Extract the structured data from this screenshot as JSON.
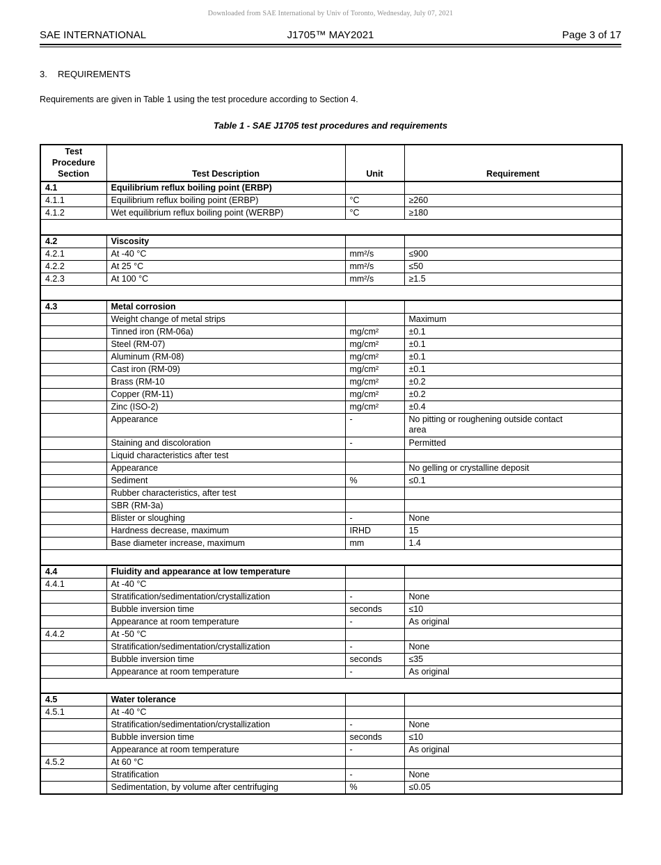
{
  "colors": {
    "notice_gray": "#8c8c8c",
    "text": "#000000",
    "background": "#ffffff"
  },
  "notice": "Downloaded from SAE International by Univ of Toronto, Wednesday, July 07, 2021",
  "header": {
    "left": "SAE INTERNATIONAL",
    "center": "J1705™ MAY2021",
    "right": "Page 3 of 17"
  },
  "section": {
    "number": "3.",
    "title": "REQUIREMENTS"
  },
  "intro": "Requirements are given in Table 1 using the test procedure according to Section 4.",
  "table": {
    "caption": "Table 1 - SAE J1705 test procedures and requirements",
    "columns": [
      "Test\nProcedure\nSection",
      "Test Description",
      "Unit",
      "Requirement"
    ],
    "rows": [
      {
        "section": "4.1",
        "description": "Equilibrium reflux boiling point (ERBP)",
        "unit": "",
        "requirement": "",
        "bold": true,
        "sectionStart": true
      },
      {
        "section": "4.1.1",
        "description": "Equilibrium reflux boiling point (ERBP)",
        "unit": "°C",
        "requirement": "≥260"
      },
      {
        "section": "4.1.2",
        "description": "Wet equilibrium reflux boiling point (WERBP)",
        "unit": "°C",
        "requirement": "≥180"
      },
      {
        "type": "spacer"
      },
      {
        "section": "4.2",
        "description": "Viscosity",
        "unit": "",
        "requirement": "",
        "bold": true,
        "sectionStart": true
      },
      {
        "section": "4.2.1",
        "description": "At -40 °C",
        "unit": "mm²/s",
        "requirement": "≤900"
      },
      {
        "section": "4.2.2",
        "description": "At 25 °C",
        "unit": "mm²/s",
        "requirement": "≤50"
      },
      {
        "section": "4.2.3",
        "description": "At 100 °C",
        "unit": "mm²/s",
        "requirement": "≥1.5"
      },
      {
        "type": "spacer"
      },
      {
        "section": "4.3",
        "description": "Metal corrosion",
        "unit": "",
        "requirement": "",
        "bold": true,
        "sectionStart": true
      },
      {
        "section": "",
        "description": "Weight change of metal strips",
        "unit": "",
        "requirement": "Maximum"
      },
      {
        "section": "",
        "description": "Tinned iron (RM-06a)",
        "indent": 1,
        "unit": "mg/cm²",
        "requirement": "±0.1"
      },
      {
        "section": "",
        "description": "Steel (RM-07)",
        "indent": 1,
        "unit": "mg/cm²",
        "requirement": "±0.1"
      },
      {
        "section": "",
        "description": "Aluminum (RM-08)",
        "indent": 1,
        "unit": "mg/cm²",
        "requirement": "±0.1"
      },
      {
        "section": "",
        "description": "Cast iron (RM-09)",
        "indent": 1,
        "unit": "mg/cm²",
        "requirement": "±0.1"
      },
      {
        "section": "",
        "description": "Brass (RM-10",
        "indent": 1,
        "unit": "mg/cm²",
        "requirement": "±0.2"
      },
      {
        "section": "",
        "description": "Copper (RM-11)",
        "indent": 1,
        "unit": "mg/cm²",
        "requirement": "±0.2"
      },
      {
        "section": "",
        "description": "Zinc (ISO-2)",
        "indent": 1,
        "unit": "mg/cm²",
        "requirement": "±0.4"
      },
      {
        "section": "",
        "description": "Appearance",
        "indent": 1,
        "unit": "-",
        "requirement": "No pitting or roughening outside contact\narea",
        "tall": true
      },
      {
        "section": "",
        "description": "Staining and discoloration",
        "indent": 1,
        "unit": "-",
        "requirement": "Permitted"
      },
      {
        "section": "",
        "description": "Liquid characteristics after test",
        "unit": "",
        "requirement": ""
      },
      {
        "section": "",
        "description": "Appearance",
        "indent": 1,
        "unit": "",
        "requirement": "No gelling or crystalline deposit"
      },
      {
        "section": "",
        "description": "Sediment",
        "indent": 1,
        "unit": "%",
        "requirement": "≤0.1"
      },
      {
        "section": "",
        "description": "Rubber characteristics, after test",
        "unit": "",
        "requirement": ""
      },
      {
        "section": "",
        "description": "SBR (RM-3a)",
        "indent": 1,
        "unit": "",
        "requirement": ""
      },
      {
        "section": "",
        "description": "Blister or sloughing",
        "indent": 2,
        "unit": "-",
        "requirement": "None"
      },
      {
        "section": "",
        "description": "Hardness decrease, maximum",
        "indent": 2,
        "unit": "IRHD",
        "requirement": "15"
      },
      {
        "section": "",
        "description": "Base diameter increase, maximum",
        "indent": 2,
        "unit": "mm",
        "requirement": "1.4"
      },
      {
        "type": "spacer"
      },
      {
        "section": "4.4",
        "description": "Fluidity and appearance at low temperature",
        "unit": "",
        "requirement": "",
        "bold": true,
        "sectionStart": true
      },
      {
        "section": "4.4.1",
        "description": "At -40 °C",
        "unit": "",
        "requirement": ""
      },
      {
        "section": "",
        "description": "Stratification/sedimentation/crystallization",
        "indent": 1,
        "unit": "-",
        "requirement": "None"
      },
      {
        "section": "",
        "description": "Bubble inversion time",
        "indent": 1,
        "unit": "seconds",
        "requirement": "≤10"
      },
      {
        "section": "",
        "description": "Appearance at room temperature",
        "indent": 1,
        "unit": "-",
        "requirement": "As original"
      },
      {
        "section": "4.4.2",
        "description": "At -50 °C",
        "unit": "",
        "requirement": ""
      },
      {
        "section": "",
        "description": "Stratification/sedimentation/crystallization",
        "indent": 1,
        "unit": "-",
        "requirement": "None"
      },
      {
        "section": "",
        "description": "Bubble inversion time",
        "indent": 1,
        "unit": "seconds",
        "requirement": "≤35"
      },
      {
        "section": "",
        "description": "Appearance at room temperature",
        "indent": 1,
        "unit": "-",
        "requirement": "As original"
      },
      {
        "type": "spacer"
      },
      {
        "section": "4.5",
        "description": "Water tolerance",
        "unit": "",
        "requirement": "",
        "bold": true,
        "sectionStart": true
      },
      {
        "section": "4.5.1",
        "description": "At -40 °C",
        "unit": "",
        "requirement": ""
      },
      {
        "section": "",
        "description": "Stratification/sedimentation/crystallization",
        "indent": 1,
        "unit": "-",
        "requirement": "None"
      },
      {
        "section": "",
        "description": "Bubble inversion time",
        "indent": 1,
        "unit": "seconds",
        "requirement": "≤10"
      },
      {
        "section": "",
        "description": "Appearance at room temperature",
        "indent": 1,
        "unit": "-",
        "requirement": "As original"
      },
      {
        "section": "4.5.2",
        "description": "At 60 °C",
        "unit": "",
        "requirement": ""
      },
      {
        "section": "",
        "description": "Stratification",
        "indent": 1,
        "unit": "-",
        "requirement": "None"
      },
      {
        "section": "",
        "description": "Sedimentation, by volume after centrifuging",
        "indent": 1,
        "unit": "%",
        "requirement": "≤0.05"
      }
    ]
  }
}
